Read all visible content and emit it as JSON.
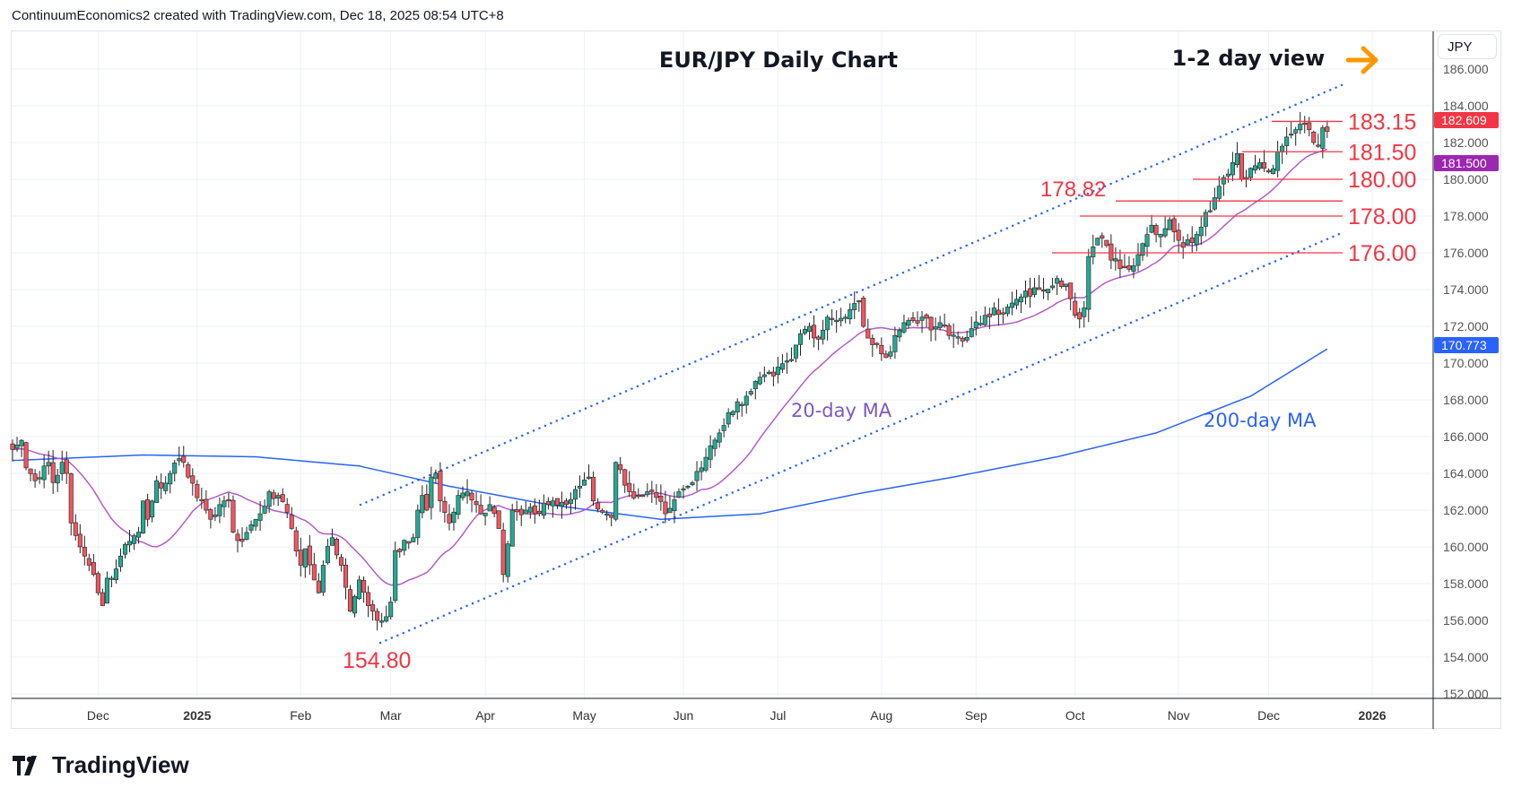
{
  "header": {
    "attribution": "ContinuumEconomics2 created with TradingView.com, Dec 18, 2025 08:54 UTC+8"
  },
  "currency_button": "JPY",
  "branding": {
    "name": "TradingView"
  },
  "colors": {
    "up": "#22ab94",
    "down": "#f7525f",
    "ma20": "#b45cc8",
    "ma200": "#2962ff",
    "level": "#f23645",
    "arrow": "#ff9800"
  },
  "chart_data": {
    "type": "candlestick",
    "title": "EUR/JPY Daily Chart",
    "subtitle": "1-2 day view",
    "ylim": [
      152,
      186
    ],
    "yticks": [
      "186.000",
      "184.000",
      "182.000",
      "180.000",
      "178.000",
      "176.000",
      "174.000",
      "172.000",
      "170.000",
      "168.000",
      "166.000",
      "164.000",
      "162.000",
      "160.000",
      "158.000",
      "156.000",
      "154.000",
      "152.000"
    ],
    "xticks": [
      {
        "label": "Dec",
        "date": "2024-12-02",
        "bold": false
      },
      {
        "label": "2025",
        "date": "2025-01-01",
        "bold": true
      },
      {
        "label": "Feb",
        "date": "2025-02-03",
        "bold": false
      },
      {
        "label": "Mar",
        "date": "2025-03-03",
        "bold": false
      },
      {
        "label": "Apr",
        "date": "2025-04-01",
        "bold": false
      },
      {
        "label": "May",
        "date": "2025-05-01",
        "bold": false
      },
      {
        "label": "Jun",
        "date": "2025-06-02",
        "bold": false
      },
      {
        "label": "Jul",
        "date": "2025-07-01",
        "bold": false
      },
      {
        "label": "Aug",
        "date": "2025-08-01",
        "bold": false
      },
      {
        "label": "Sep",
        "date": "2025-09-01",
        "bold": false
      },
      {
        "label": "Oct",
        "date": "2025-10-01",
        "bold": false
      },
      {
        "label": "Nov",
        "date": "2025-11-03",
        "bold": false
      },
      {
        "label": "Dec",
        "date": "2025-12-01",
        "bold": false
      },
      {
        "label": "2026",
        "date": "2026-01-01",
        "bold": true
      }
    ],
    "close_path": [
      [
        "2024-11-05",
        165.3
      ],
      [
        "2024-11-07",
        165.8
      ],
      [
        "2024-11-08",
        164.3
      ],
      [
        "2024-11-12",
        163.6
      ],
      [
        "2024-11-14",
        164.4
      ],
      [
        "2024-11-15",
        164.6
      ],
      [
        "2024-11-18",
        163.5
      ],
      [
        "2024-11-20",
        164.6
      ],
      [
        "2024-11-21",
        164.0
      ],
      [
        "2024-11-22",
        161.3
      ],
      [
        "2024-11-26",
        160.0
      ],
      [
        "2024-11-27",
        159.5
      ],
      [
        "2024-11-29",
        158.5
      ],
      [
        "2024-12-02",
        157.5
      ],
      [
        "2024-12-03",
        156.8
      ],
      [
        "2024-12-04",
        158.3
      ],
      [
        "2024-12-06",
        158.8
      ],
      [
        "2024-12-09",
        159.5
      ],
      [
        "2024-12-11",
        160.3
      ],
      [
        "2024-12-13",
        160.8
      ],
      [
        "2024-12-16",
        162.5
      ],
      [
        "2024-12-17",
        161.5
      ],
      [
        "2024-12-19",
        163.6
      ],
      [
        "2024-12-20",
        163.2
      ],
      [
        "2024-12-24",
        164.0
      ],
      [
        "2024-12-26",
        164.8
      ],
      [
        "2024-12-27",
        164.6
      ],
      [
        "2024-12-30",
        163.8
      ],
      [
        "2025-01-02",
        162.5
      ],
      [
        "2025-01-06",
        161.5
      ],
      [
        "2025-01-08",
        162.3
      ],
      [
        "2025-01-10",
        162.5
      ],
      [
        "2025-01-13",
        160.8
      ],
      [
        "2025-01-15",
        160.3
      ],
      [
        "2025-01-17",
        161.2
      ],
      [
        "2025-01-21",
        161.8
      ],
      [
        "2025-01-23",
        163.0
      ],
      [
        "2025-01-27",
        162.8
      ],
      [
        "2025-01-30",
        161.0
      ],
      [
        "2025-02-03",
        159.0
      ],
      [
        "2025-02-04",
        159.9
      ],
      [
        "2025-02-06",
        158.2
      ],
      [
        "2025-02-07",
        157.5
      ],
      [
        "2025-02-10",
        159.0
      ],
      [
        "2025-02-12",
        160.5
      ],
      [
        "2025-02-14",
        159.0
      ],
      [
        "2025-02-17",
        157.8
      ],
      [
        "2025-02-18",
        156.5
      ],
      [
        "2025-02-20",
        158.2
      ],
      [
        "2025-02-24",
        156.8
      ],
      [
        "2025-02-26",
        156.0
      ],
      [
        "2025-02-28",
        156.2
      ],
      [
        "2025-03-03",
        157.0
      ],
      [
        "2025-03-04",
        159.8
      ],
      [
        "2025-03-07",
        160.2
      ],
      [
        "2025-03-10",
        160.5
      ],
      [
        "2025-03-11",
        162.0
      ],
      [
        "2025-03-12",
        162.8
      ],
      [
        "2025-03-13",
        162.0
      ],
      [
        "2025-03-14",
        163.8
      ],
      [
        "2025-03-17",
        164.0
      ],
      [
        "2025-03-18",
        162.5
      ],
      [
        "2025-03-20",
        161.3
      ],
      [
        "2025-03-24",
        162.8
      ],
      [
        "2025-03-26",
        163.0
      ],
      [
        "2025-03-28",
        162.3
      ],
      [
        "2025-03-31",
        161.8
      ],
      [
        "2025-04-02",
        162.3
      ],
      [
        "2025-04-04",
        161.0
      ],
      [
        "2025-04-07",
        158.5
      ],
      [
        "2025-04-09",
        162.0
      ],
      [
        "2025-04-14",
        162.0
      ],
      [
        "2025-04-16",
        161.8
      ],
      [
        "2025-04-22",
        162.5
      ],
      [
        "2025-04-25",
        162.3
      ],
      [
        "2025-04-30",
        163.3
      ],
      [
        "2025-05-02",
        163.8
      ],
      [
        "2025-05-05",
        162.5
      ],
      [
        "2025-05-09",
        161.6
      ],
      [
        "2025-05-12",
        164.6
      ],
      [
        "2025-05-13",
        164.2
      ],
      [
        "2025-05-15",
        163.0
      ],
      [
        "2025-05-20",
        162.8
      ],
      [
        "2025-05-22",
        163.0
      ],
      [
        "2025-05-27",
        161.8
      ],
      [
        "2025-05-30",
        163.0
      ],
      [
        "2025-06-04",
        163.5
      ],
      [
        "2025-06-06",
        164.3
      ],
      [
        "2025-06-10",
        165.5
      ],
      [
        "2025-06-12",
        166.2
      ],
      [
        "2025-06-16",
        167.3
      ],
      [
        "2025-06-20",
        168.2
      ],
      [
        "2025-06-24",
        169.0
      ],
      [
        "2025-06-30",
        169.3
      ],
      [
        "2025-07-04",
        170.2
      ],
      [
        "2025-07-08",
        171.6
      ],
      [
        "2025-07-10",
        172.0
      ],
      [
        "2025-07-14",
        171.3
      ],
      [
        "2025-07-16",
        172.5
      ],
      [
        "2025-07-22",
        172.5
      ],
      [
        "2025-07-25",
        173.4
      ],
      [
        "2025-07-28",
        172.0
      ],
      [
        "2025-07-30",
        171.0
      ],
      [
        "2025-08-01",
        170.5
      ],
      [
        "2025-08-04",
        170.3
      ],
      [
        "2025-08-06",
        171.5
      ],
      [
        "2025-08-08",
        172.2
      ],
      [
        "2025-08-14",
        172.5
      ],
      [
        "2025-08-18",
        171.8
      ],
      [
        "2025-08-20",
        172.2
      ],
      [
        "2025-08-22",
        171.5
      ],
      [
        "2025-08-28",
        171.4
      ],
      [
        "2025-09-03",
        172.6
      ],
      [
        "2025-09-05",
        173.0
      ],
      [
        "2025-09-09",
        172.7
      ],
      [
        "2025-09-15",
        173.6
      ],
      [
        "2025-09-19",
        174.0
      ],
      [
        "2025-09-25",
        174.6
      ],
      [
        "2025-09-29",
        174.3
      ],
      [
        "2025-09-30",
        173.5
      ],
      [
        "2025-10-01",
        172.6
      ],
      [
        "2025-10-02",
        172.4
      ],
      [
        "2025-10-03",
        173.0
      ],
      [
        "2025-10-06",
        175.8
      ],
      [
        "2025-10-08",
        176.8
      ],
      [
        "2025-10-10",
        176.4
      ],
      [
        "2025-10-13",
        175.6
      ],
      [
        "2025-10-17",
        175.1
      ],
      [
        "2025-10-22",
        176.5
      ],
      [
        "2025-10-24",
        177.5
      ],
      [
        "2025-10-28",
        177.0
      ],
      [
        "2025-10-30",
        177.8
      ],
      [
        "2025-11-04",
        176.3
      ],
      [
        "2025-11-07",
        177.0
      ],
      [
        "2025-11-11",
        178.2
      ],
      [
        "2025-11-13",
        179.0
      ],
      [
        "2025-11-17",
        180.1
      ],
      [
        "2025-11-20",
        181.4
      ],
      [
        "2025-11-21",
        180.0
      ],
      [
        "2025-11-25",
        180.6
      ],
      [
        "2025-11-27",
        180.9
      ],
      [
        "2025-12-01",
        180.4
      ],
      [
        "2025-12-04",
        181.8
      ],
      [
        "2025-12-05",
        182.3
      ],
      [
        "2025-12-09",
        182.7
      ],
      [
        "2025-12-10",
        183.0
      ],
      [
        "2025-12-12",
        182.7
      ],
      [
        "2025-12-15",
        182.0
      ],
      [
        "2025-12-16",
        181.8
      ],
      [
        "2025-12-17",
        182.8
      ],
      [
        "2025-12-18",
        182.61
      ]
    ],
    "ma200_path": [
      [
        "2024-11-05",
        164.7
      ],
      [
        "2024-12-15",
        165.0
      ],
      [
        "2025-01-20",
        164.9
      ],
      [
        "2025-02-20",
        164.4
      ],
      [
        "2025-03-20",
        163.3
      ],
      [
        "2025-04-20",
        162.3
      ],
      [
        "2025-05-25",
        161.5
      ],
      [
        "2025-06-25",
        161.8
      ],
      [
        "2025-07-25",
        162.9
      ],
      [
        "2025-08-25",
        163.8
      ],
      [
        "2025-09-25",
        164.9
      ],
      [
        "2025-10-25",
        166.2
      ],
      [
        "2025-11-25",
        168.2
      ],
      [
        "2025-12-18",
        170.77
      ]
    ],
    "annotations": {
      "ma20_label": "20-day MA",
      "ma200_label": "200-day MA",
      "low_label": "154.80"
    },
    "levels": [
      {
        "value": 183.15,
        "label": "183.15"
      },
      {
        "value": 181.5,
        "label": "181.50"
      },
      {
        "value": 180.0,
        "label": "180.00"
      },
      {
        "value": 178.82,
        "label": "178.82"
      },
      {
        "value": 178.0,
        "label": "178.00"
      },
      {
        "value": 176.0,
        "label": "176.00"
      }
    ],
    "price_tags": [
      {
        "label": "182.609",
        "value": 182.609,
        "color": "#f23645"
      },
      {
        "label": "181.500",
        "value": 181.5,
        "color": "#9c27b0"
      },
      {
        "label": "170.773",
        "value": 170.773,
        "color": "#2962ff"
      }
    ]
  }
}
